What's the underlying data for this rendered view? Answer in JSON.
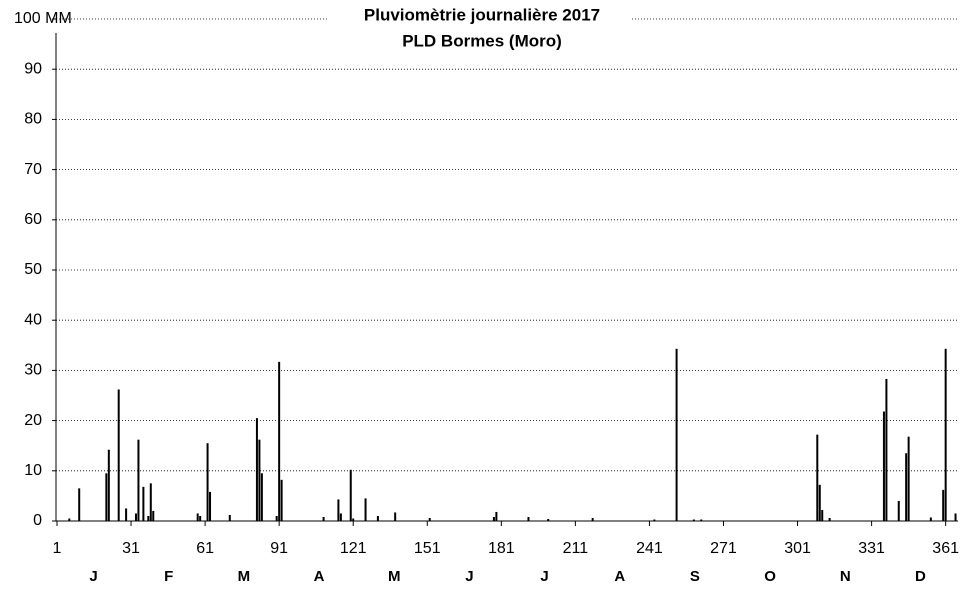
{
  "chart_data": {
    "type": "bar",
    "title": "Pluviomètrie journalière 2017",
    "subtitle": "PLD Bormes (Moro)",
    "x": [
      6,
      10,
      21,
      22,
      26,
      29,
      33,
      34,
      36,
      38,
      39,
      40,
      58,
      59,
      62,
      63,
      71,
      82,
      83,
      84,
      90,
      91,
      92,
      109,
      115,
      116,
      120,
      121,
      126,
      131,
      138,
      152,
      178,
      179,
      192,
      200,
      218,
      243,
      252,
      259,
      262,
      309,
      310,
      311,
      314,
      336,
      337,
      342,
      345,
      346,
      355,
      360,
      361,
      365
    ],
    "values": [
      0.5,
      6.5,
      9.5,
      14.2,
      26.2,
      2.5,
      1.5,
      16.2,
      6.8,
      1,
      7.5,
      2,
      1.5,
      1,
      15.5,
      5.8,
      1.2,
      20.5,
      16.2,
      9.5,
      1,
      31.7,
      8.2,
      0.8,
      4.3,
      1.5,
      10.2,
      0.5,
      4.5,
      1,
      1.7,
      0.6,
      0.8,
      1.8,
      0.8,
      0.4,
      0.6,
      0.3,
      34.3,
      0.3,
      0.3,
      17.2,
      7.2,
      2.2,
      0.6,
      21.8,
      28.3,
      4,
      13.5,
      16.8,
      0.7,
      6.2,
      34.3,
      1.5
    ],
    "color": "#000000",
    "month_labels": [
      "J",
      "F",
      "M",
      "A",
      "M",
      "J",
      "J",
      "A",
      "S",
      "O",
      "N",
      "D"
    ],
    "xlim": [
      0.6,
      366
    ],
    "xticks": [
      1,
      31,
      61,
      91,
      121,
      151,
      181,
      211,
      241,
      271,
      301,
      331,
      361
    ],
    "ylim": [
      0,
      100
    ],
    "yticks": [
      0,
      10,
      20,
      30,
      40,
      50,
      60,
      70,
      80,
      90,
      {
        "value": 100,
        "label": "100 MM"
      }
    ],
    "grid": true
  }
}
